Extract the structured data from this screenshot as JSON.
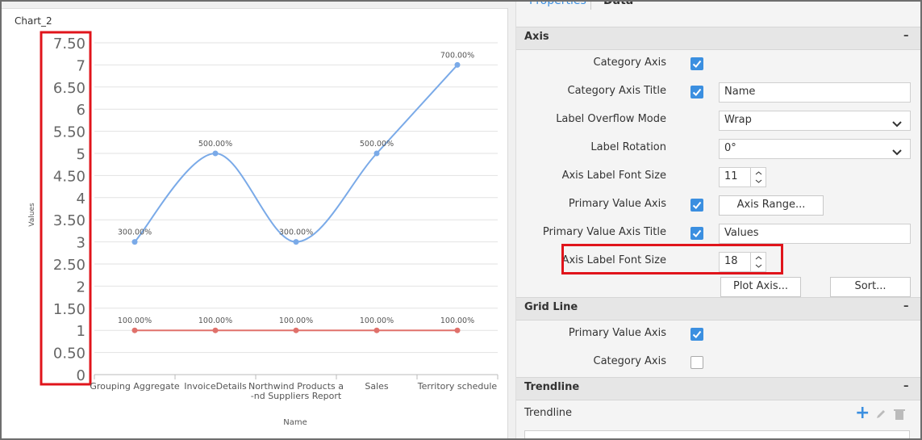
{
  "tabs": [
    "Properties",
    "Data"
  ],
  "chart": {
    "type": "line",
    "title": "Chart_2",
    "categories": [
      "Grouping Aggregate",
      "InvoiceDetails",
      "Northwind Products a\n-nd Suppliers Report",
      "Sales",
      "Territory schedule"
    ],
    "series": [
      {
        "color": "#7aaae8",
        "values": [
          3,
          5,
          3,
          5,
          7
        ],
        "value_labels": [
          "300.00%",
          "500.00%",
          "300.00%",
          "500.00%",
          "700.00%"
        ]
      },
      {
        "color": "#e0716b",
        "values": [
          1,
          1,
          1,
          1,
          1
        ],
        "value_labels": [
          "100.00%",
          "100.00%",
          "100.00%",
          "100.00%",
          "100.00%"
        ]
      }
    ],
    "ylim": [
      0,
      7.5
    ],
    "yticks": [
      0,
      {
        "value": 0.5,
        "label": "0.50"
      },
      1,
      {
        "value": 1.5,
        "label": "1.50"
      },
      2,
      {
        "value": 2.5,
        "label": "2.50"
      },
      3,
      {
        "value": 3.5,
        "label": "3.50"
      },
      4,
      {
        "value": 4.5,
        "label": "4.50"
      },
      5,
      {
        "value": 5.5,
        "label": "5.50"
      },
      6,
      {
        "value": 6.5,
        "label": "6.50"
      },
      7,
      {
        "value": 7.5,
        "label": "7.50"
      }
    ],
    "xlabel": "Name",
    "ylabel": "Values",
    "grid": true
  },
  "panel": {
    "sections": [
      {
        "title": "Axis",
        "collapse": "–",
        "rows": [
          {
            "label": "Category Axis",
            "checkbox": true
          },
          {
            "label": "Category Axis Title",
            "checkbox": true,
            "input": "Name"
          },
          {
            "label": "Label Overflow Mode",
            "select": "Wrap"
          },
          {
            "label": "Label Rotation",
            "select": "0°"
          },
          {
            "label": "Axis Label Font Size",
            "number": 11
          },
          {
            "label": "Primary Value Axis",
            "checkbox": true,
            "button": "Axis Range..."
          },
          {
            "label": "Primary Value Axis Title",
            "checkbox": true,
            "input": "Values"
          },
          {
            "label": "Axis Label Font Size",
            "number": 18
          },
          {
            "buttons": [
              "Plot Axis...",
              "Sort..."
            ]
          }
        ]
      },
      {
        "title": "Grid Line",
        "collapse": "–",
        "rows": [
          {
            "label": "Primary Value Axis",
            "checkbox": true
          },
          {
            "label": "Category Axis",
            "checkbox": false
          }
        ]
      },
      {
        "title": "Trendline",
        "collapse": "–",
        "rows": [
          {
            "label": "Trendline"
          }
        ]
      }
    ]
  }
}
